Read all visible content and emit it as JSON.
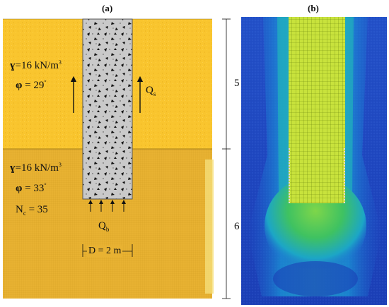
{
  "panel_a": {
    "label": "(a)",
    "upper_layer": {
      "gamma": "=16 kN/m",
      "gamma_exp": "3",
      "phi": "= 29",
      "phi_deg": "°"
    },
    "lower_layer": {
      "gamma": "=16 kN/m",
      "gamma_exp": "3",
      "phi": "= 33",
      "phi_deg": "°",
      "nc": "N",
      "nc_sub": "c",
      "nc_val": "= 35"
    },
    "qs": "Q",
    "qs_sub": "s",
    "qb": "Q",
    "qb_sub": "b",
    "width": "D = 2 m",
    "depth_upper": "5 m",
    "depth_lower": "6 m",
    "symbols": {
      "gamma": "ɣ",
      "phi": "φ"
    },
    "colors": {
      "upper_soil": "#F9C52E",
      "lower_soil": "#E8B232",
      "pile": "#C9C9C9",
      "pile_edge": "#555555"
    }
  },
  "panel_b": {
    "label": "(b)",
    "colors": {
      "background": "#1F47C2",
      "contour_mid": "#1AA0D6",
      "contour_green": "#3FC261",
      "pile_mesh": "#C9E43A",
      "pile_grid": "#6E8B10"
    }
  }
}
